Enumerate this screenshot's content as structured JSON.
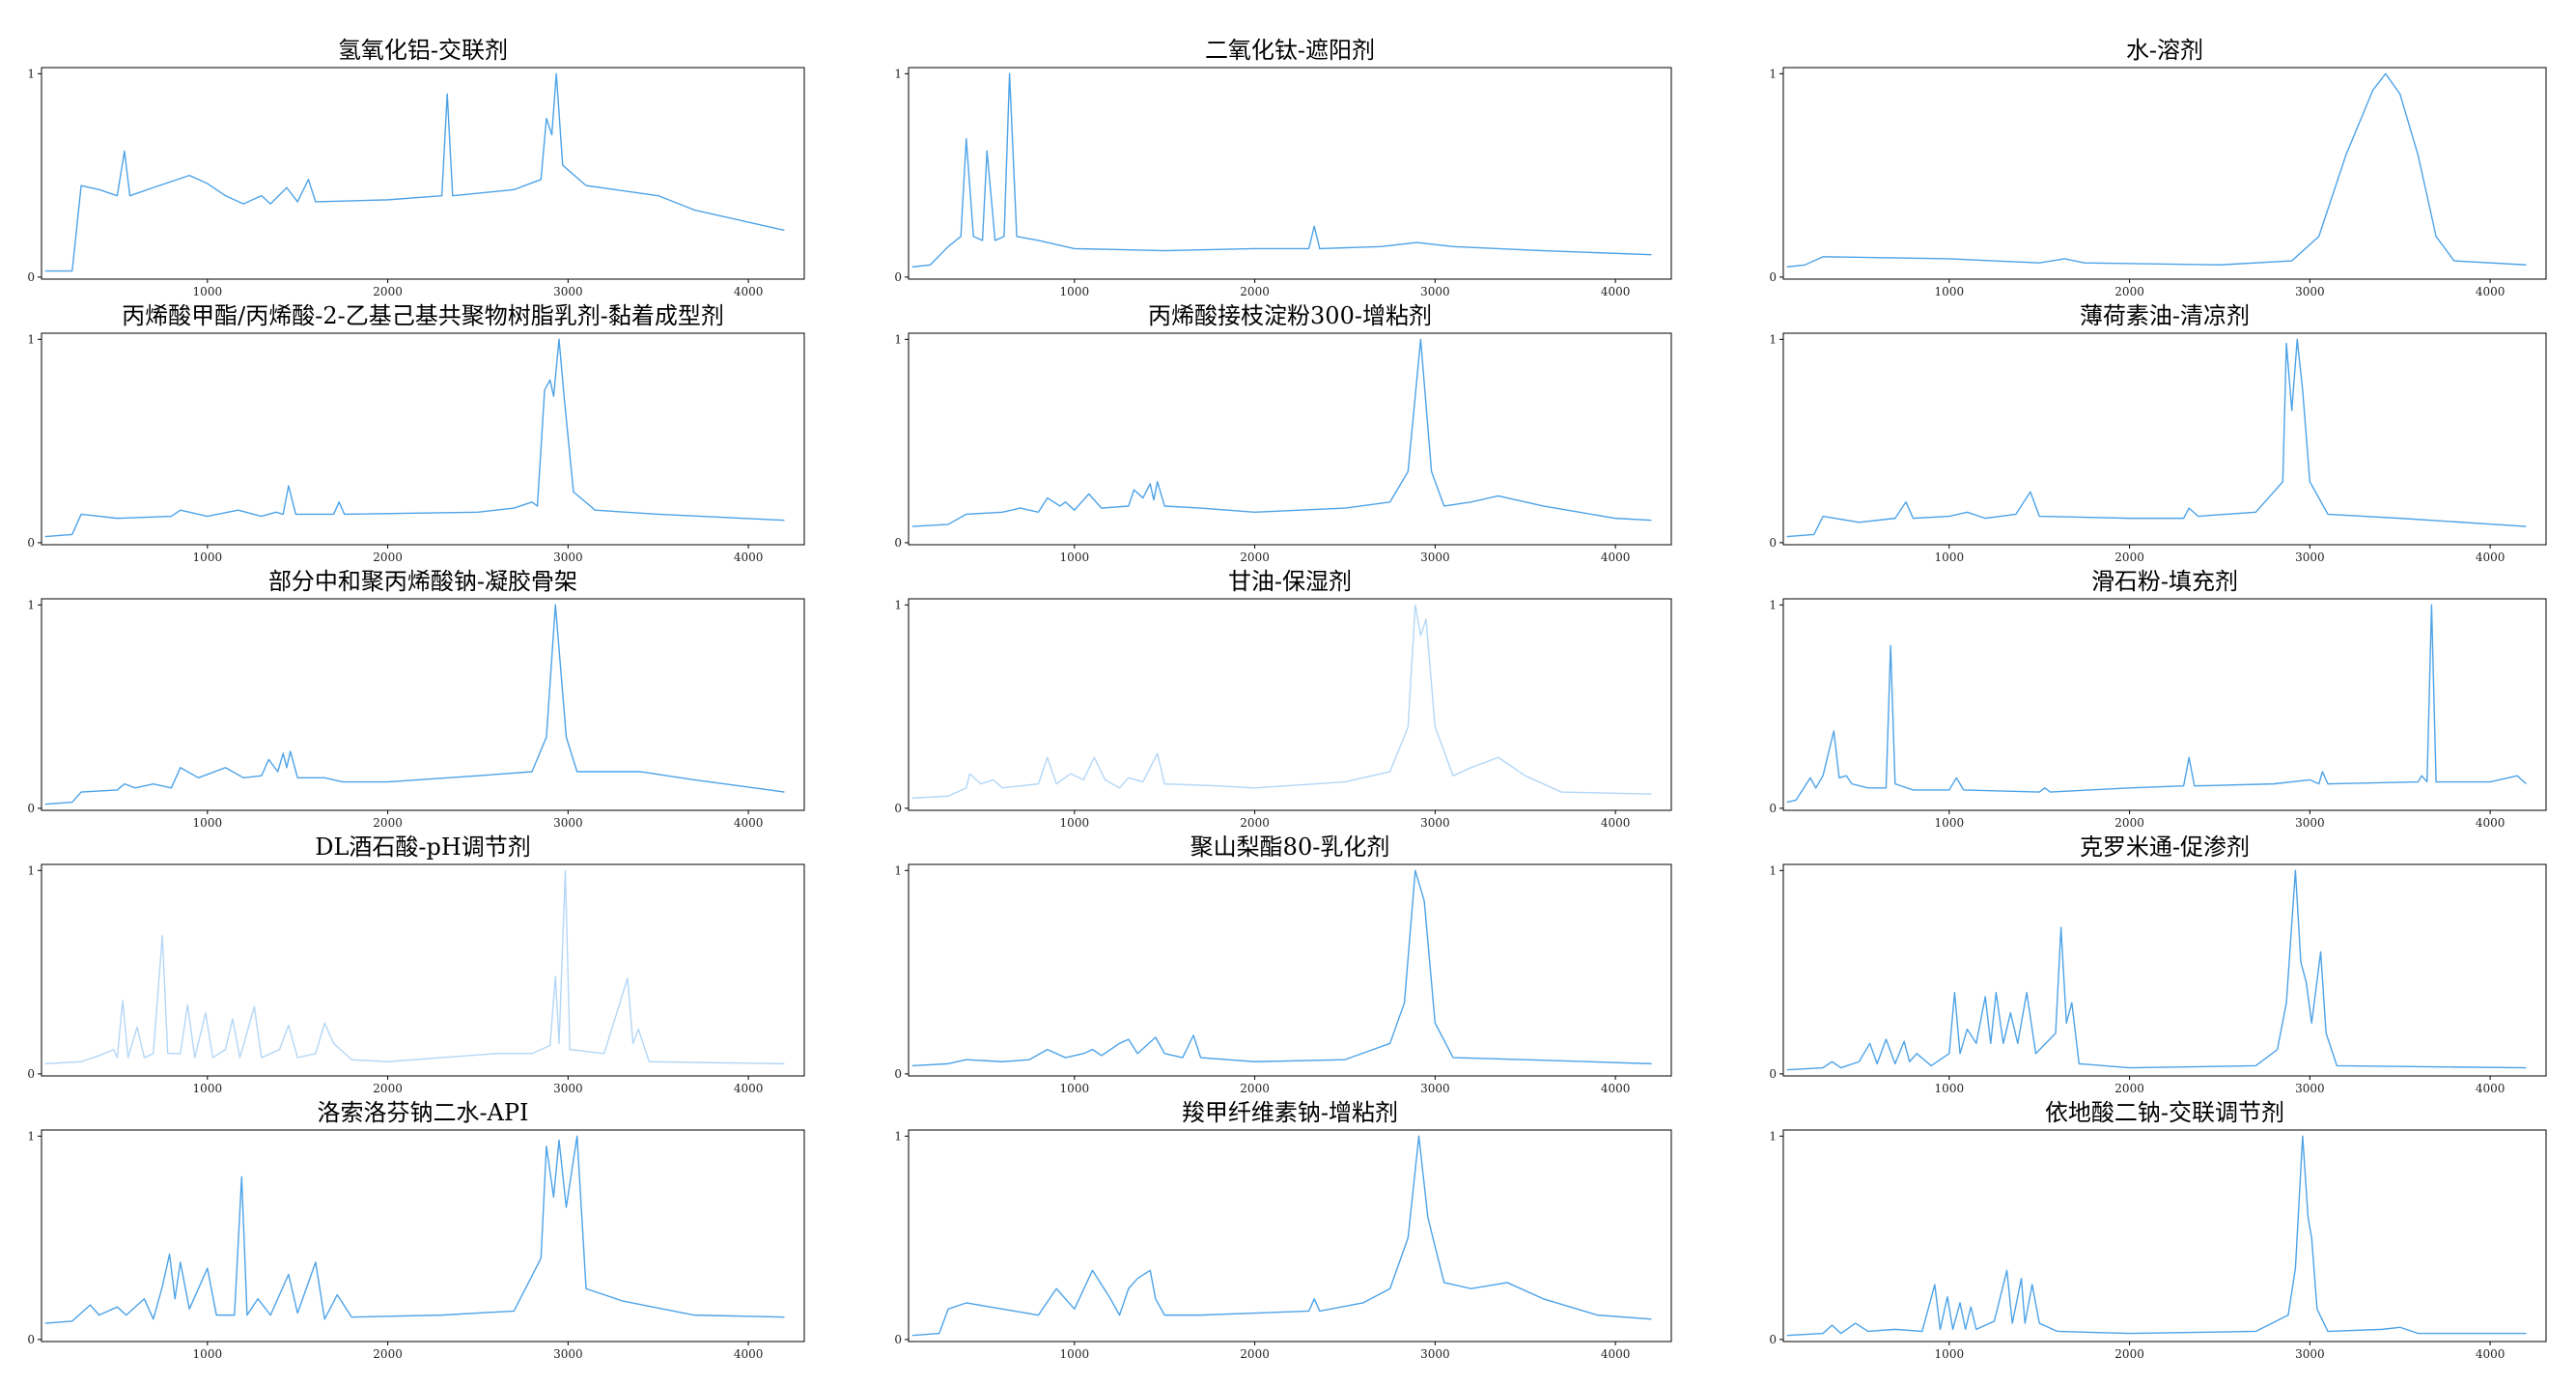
{
  "chart_data": [
    {
      "type": "line",
      "title": "氢氧化铝-交联剂",
      "color": "#4da3e8",
      "x": [
        100,
        250,
        300,
        400,
        500,
        540,
        570,
        700,
        900,
        1000,
        1100,
        1200,
        1300,
        1350,
        1440,
        1500,
        1560,
        1600,
        2000,
        2300,
        2330,
        2360,
        2700,
        2850,
        2880,
        2910,
        2935,
        2970,
        3100,
        3500,
        3700,
        4000,
        4200
      ],
      "values": [
        0.03,
        0.03,
        0.45,
        0.43,
        0.4,
        0.62,
        0.4,
        0.44,
        0.5,
        0.46,
        0.4,
        0.36,
        0.4,
        0.36,
        0.44,
        0.37,
        0.48,
        0.37,
        0.38,
        0.4,
        0.9,
        0.4,
        0.43,
        0.48,
        0.78,
        0.7,
        1.0,
        0.55,
        0.45,
        0.4,
        0.33,
        0.27,
        0.23
      ],
      "xlim": [
        80,
        4310
      ],
      "ylim": [
        -0.01,
        1.03
      ],
      "xticks": [
        1000,
        2000,
        3000,
        4000
      ],
      "yticks": [
        0,
        1
      ]
    },
    {
      "type": "line",
      "title": "二氧化钛-遮阳剂",
      "color": "#4da3e8",
      "x": [
        100,
        200,
        300,
        370,
        400,
        440,
        490,
        515,
        560,
        610,
        640,
        680,
        800,
        1000,
        1500,
        2000,
        2300,
        2330,
        2360,
        2700,
        2900,
        3100,
        3600,
        4200
      ],
      "values": [
        0.05,
        0.06,
        0.15,
        0.2,
        0.68,
        0.2,
        0.18,
        0.62,
        0.18,
        0.2,
        1.0,
        0.2,
        0.18,
        0.14,
        0.13,
        0.14,
        0.14,
        0.25,
        0.14,
        0.15,
        0.17,
        0.15,
        0.13,
        0.11
      ],
      "xlim": [
        80,
        4310
      ],
      "ylim": [
        -0.01,
        1.03
      ],
      "xticks": [
        1000,
        2000,
        3000,
        4000
      ],
      "yticks": [
        0,
        1
      ]
    },
    {
      "type": "line",
      "title": "水-溶剂",
      "color": "#4da3e8",
      "x": [
        100,
        200,
        300,
        1000,
        1500,
        1640,
        1750,
        2500,
        2900,
        3050,
        3200,
        3350,
        3420,
        3500,
        3600,
        3700,
        3800,
        4200
      ],
      "values": [
        0.05,
        0.06,
        0.1,
        0.09,
        0.07,
        0.09,
        0.07,
        0.06,
        0.08,
        0.2,
        0.6,
        0.92,
        1.0,
        0.9,
        0.6,
        0.2,
        0.08,
        0.06
      ],
      "xlim": [
        80,
        4310
      ],
      "ylim": [
        -0.01,
        1.03
      ],
      "xticks": [
        1000,
        2000,
        3000,
        4000
      ],
      "yticks": [
        0,
        1
      ]
    },
    {
      "type": "line",
      "title": "丙烯酸甲酯/丙烯酸-2-乙基己基共聚物树脂乳剂-黏着成型剂",
      "color": "#4da3e8",
      "x": [
        100,
        250,
        300,
        500,
        800,
        850,
        1000,
        1170,
        1300,
        1380,
        1420,
        1450,
        1490,
        1700,
        1730,
        1760,
        2500,
        2700,
        2800,
        2830,
        2870,
        2900,
        2920,
        2950,
        2980,
        3030,
        3150,
        3500,
        4200
      ],
      "values": [
        0.03,
        0.04,
        0.14,
        0.12,
        0.13,
        0.16,
        0.13,
        0.16,
        0.13,
        0.15,
        0.14,
        0.28,
        0.14,
        0.14,
        0.2,
        0.14,
        0.15,
        0.17,
        0.2,
        0.18,
        0.75,
        0.8,
        0.72,
        1.0,
        0.7,
        0.25,
        0.16,
        0.14,
        0.11
      ],
      "xlim": [
        80,
        4310
      ],
      "ylim": [
        -0.01,
        1.03
      ],
      "xticks": [
        1000,
        2000,
        3000,
        4000
      ],
      "yticks": [
        0,
        1
      ]
    },
    {
      "type": "line",
      "title": "丙烯酸接枝淀粉300-增粘剂",
      "color": "#4da3e8",
      "x": [
        100,
        300,
        400,
        600,
        700,
        800,
        850,
        920,
        950,
        1000,
        1080,
        1150,
        1300,
        1330,
        1380,
        1420,
        1440,
        1460,
        1500,
        1700,
        2000,
        2500,
        2750,
        2850,
        2920,
        2980,
        3050,
        3200,
        3350,
        3600,
        4000,
        4200
      ],
      "values": [
        0.08,
        0.09,
        0.14,
        0.15,
        0.17,
        0.15,
        0.22,
        0.18,
        0.2,
        0.16,
        0.24,
        0.17,
        0.18,
        0.26,
        0.22,
        0.29,
        0.21,
        0.3,
        0.18,
        0.17,
        0.15,
        0.17,
        0.2,
        0.35,
        1.0,
        0.35,
        0.18,
        0.2,
        0.23,
        0.18,
        0.12,
        0.11
      ],
      "xlim": [
        80,
        4310
      ],
      "ylim": [
        -0.01,
        1.03
      ],
      "xticks": [
        1000,
        2000,
        3000,
        4000
      ],
      "yticks": [
        0,
        1
      ]
    },
    {
      "type": "line",
      "title": "薄荷素油-清凉剂",
      "color": "#4da3e8",
      "x": [
        100,
        250,
        300,
        500,
        700,
        760,
        800,
        1000,
        1100,
        1200,
        1370,
        1450,
        1500,
        2000,
        2300,
        2330,
        2380,
        2700,
        2750,
        2850,
        2870,
        2900,
        2930,
        2960,
        3000,
        3100,
        3500,
        4200
      ],
      "values": [
        0.03,
        0.04,
        0.13,
        0.1,
        0.12,
        0.2,
        0.12,
        0.13,
        0.15,
        0.12,
        0.14,
        0.25,
        0.13,
        0.12,
        0.12,
        0.17,
        0.13,
        0.15,
        0.2,
        0.3,
        0.98,
        0.65,
        1.0,
        0.75,
        0.3,
        0.14,
        0.12,
        0.08
      ],
      "xlim": [
        80,
        4310
      ],
      "ylim": [
        -0.01,
        1.03
      ],
      "xticks": [
        1000,
        2000,
        3000,
        4000
      ],
      "yticks": [
        0,
        1
      ]
    },
    {
      "type": "line",
      "title": "部分中和聚丙烯酸钠-凝胶骨架",
      "color": "#4da3e8",
      "x": [
        100,
        250,
        300,
        500,
        540,
        600,
        700,
        800,
        850,
        950,
        1100,
        1200,
        1300,
        1340,
        1390,
        1420,
        1440,
        1460,
        1500,
        1650,
        1750,
        2000,
        2500,
        2800,
        2880,
        2930,
        2990,
        3050,
        3400,
        3700,
        4200
      ],
      "values": [
        0.02,
        0.03,
        0.08,
        0.09,
        0.12,
        0.1,
        0.12,
        0.1,
        0.2,
        0.15,
        0.2,
        0.15,
        0.16,
        0.24,
        0.18,
        0.27,
        0.2,
        0.28,
        0.15,
        0.15,
        0.13,
        0.13,
        0.16,
        0.18,
        0.35,
        1.0,
        0.35,
        0.18,
        0.18,
        0.14,
        0.08
      ],
      "xlim": [
        80,
        4310
      ],
      "ylim": [
        -0.01,
        1.03
      ],
      "xticks": [
        1000,
        2000,
        3000,
        4000
      ],
      "yticks": [
        0,
        1
      ]
    },
    {
      "type": "line",
      "title": "甘油-保湿剂",
      "color": "#b3d7f7",
      "x": [
        100,
        300,
        400,
        420,
        480,
        550,
        600,
        800,
        850,
        900,
        980,
        1050,
        1110,
        1170,
        1250,
        1300,
        1380,
        1460,
        1500,
        1800,
        2000,
        2500,
        2750,
        2850,
        2890,
        2920,
        2950,
        3000,
        3100,
        3200,
        3350,
        3500,
        3700,
        4200
      ],
      "values": [
        0.05,
        0.06,
        0.1,
        0.17,
        0.12,
        0.14,
        0.1,
        0.12,
        0.25,
        0.12,
        0.17,
        0.14,
        0.25,
        0.14,
        0.1,
        0.15,
        0.13,
        0.27,
        0.12,
        0.11,
        0.1,
        0.13,
        0.18,
        0.4,
        1.0,
        0.85,
        0.93,
        0.4,
        0.16,
        0.2,
        0.25,
        0.16,
        0.08,
        0.07
      ],
      "xlim": [
        80,
        4310
      ],
      "ylim": [
        -0.01,
        1.03
      ],
      "xticks": [
        1000,
        2000,
        3000,
        4000
      ],
      "yticks": [
        0,
        1
      ]
    },
    {
      "type": "line",
      "title": "滑石粉-填充剂",
      "color": "#4da3e8",
      "x": [
        100,
        150,
        230,
        260,
        300,
        360,
        390,
        430,
        460,
        550,
        650,
        675,
        700,
        800,
        1000,
        1040,
        1080,
        1500,
        1530,
        1560,
        2000,
        2300,
        2330,
        2360,
        2800,
        3000,
        3050,
        3070,
        3100,
        3600,
        3620,
        3650,
        3675,
        3700,
        4000,
        4150,
        4200
      ],
      "values": [
        0.03,
        0.04,
        0.15,
        0.1,
        0.16,
        0.38,
        0.15,
        0.16,
        0.12,
        0.1,
        0.1,
        0.8,
        0.12,
        0.09,
        0.09,
        0.15,
        0.09,
        0.08,
        0.1,
        0.08,
        0.1,
        0.11,
        0.25,
        0.11,
        0.12,
        0.14,
        0.12,
        0.18,
        0.12,
        0.13,
        0.16,
        0.13,
        1.0,
        0.13,
        0.13,
        0.16,
        0.12
      ],
      "xlim": [
        80,
        4310
      ],
      "ylim": [
        -0.01,
        1.03
      ],
      "xticks": [
        1000,
        2000,
        3000,
        4000
      ],
      "yticks": [
        0,
        1
      ]
    },
    {
      "type": "line",
      "title": "DL酒石酸-pH调节剂",
      "color": "#b3d7f7",
      "x": [
        100,
        300,
        400,
        480,
        500,
        530,
        560,
        610,
        650,
        700,
        750,
        780,
        850,
        890,
        930,
        990,
        1030,
        1100,
        1140,
        1180,
        1260,
        1300,
        1400,
        1450,
        1500,
        1600,
        1650,
        1700,
        1800,
        2000,
        2600,
        2800,
        2900,
        2930,
        2950,
        2985,
        3010,
        3200,
        3330,
        3360,
        3390,
        3450,
        4200
      ],
      "values": [
        0.05,
        0.06,
        0.09,
        0.12,
        0.08,
        0.36,
        0.08,
        0.23,
        0.08,
        0.1,
        0.68,
        0.1,
        0.1,
        0.34,
        0.08,
        0.3,
        0.08,
        0.12,
        0.27,
        0.08,
        0.33,
        0.08,
        0.12,
        0.24,
        0.08,
        0.1,
        0.25,
        0.15,
        0.07,
        0.06,
        0.1,
        0.1,
        0.14,
        0.48,
        0.15,
        1.0,
        0.12,
        0.1,
        0.47,
        0.15,
        0.22,
        0.06,
        0.05
      ],
      "xlim": [
        80,
        4310
      ],
      "ylim": [
        -0.01,
        1.03
      ],
      "xticks": [
        1000,
        2000,
        3000,
        4000
      ],
      "yticks": [
        0,
        1
      ]
    },
    {
      "type": "line",
      "title": "聚山梨酯80-乳化剂",
      "color": "#4da3e8",
      "x": [
        100,
        300,
        400,
        600,
        750,
        850,
        950,
        1050,
        1100,
        1150,
        1250,
        1300,
        1350,
        1450,
        1500,
        1600,
        1660,
        1700,
        2000,
        2500,
        2750,
        2830,
        2890,
        2940,
        3000,
        3100,
        3500,
        4200
      ],
      "values": [
        0.04,
        0.05,
        0.07,
        0.06,
        0.07,
        0.12,
        0.08,
        0.1,
        0.12,
        0.09,
        0.15,
        0.17,
        0.1,
        0.18,
        0.1,
        0.08,
        0.19,
        0.08,
        0.06,
        0.07,
        0.15,
        0.35,
        1.0,
        0.85,
        0.25,
        0.08,
        0.07,
        0.05
      ],
      "xlim": [
        80,
        4310
      ],
      "ylim": [
        -0.01,
        1.03
      ],
      "xticks": [
        1000,
        2000,
        3000,
        4000
      ],
      "yticks": [
        0,
        1
      ]
    },
    {
      "type": "line",
      "title": "克罗米通-促渗剂",
      "color": "#4da3e8",
      "x": [
        100,
        300,
        350,
        400,
        500,
        560,
        600,
        650,
        700,
        750,
        780,
        820,
        900,
        1000,
        1030,
        1060,
        1100,
        1150,
        1200,
        1230,
        1260,
        1300,
        1340,
        1380,
        1430,
        1480,
        1590,
        1620,
        1650,
        1680,
        1720,
        2000,
        2700,
        2820,
        2870,
        2920,
        2950,
        2980,
        3010,
        3060,
        3090,
        3150,
        4200
      ],
      "values": [
        0.02,
        0.03,
        0.06,
        0.03,
        0.06,
        0.15,
        0.05,
        0.17,
        0.05,
        0.16,
        0.06,
        0.1,
        0.04,
        0.1,
        0.4,
        0.1,
        0.22,
        0.15,
        0.38,
        0.15,
        0.4,
        0.15,
        0.3,
        0.15,
        0.4,
        0.1,
        0.2,
        0.72,
        0.25,
        0.35,
        0.05,
        0.03,
        0.04,
        0.12,
        0.35,
        1.0,
        0.55,
        0.45,
        0.25,
        0.6,
        0.2,
        0.04,
        0.03
      ],
      "xlim": [
        80,
        4310
      ],
      "ylim": [
        -0.01,
        1.03
      ],
      "xticks": [
        1000,
        2000,
        3000,
        4000
      ],
      "yticks": [
        0,
        1
      ]
    },
    {
      "type": "line",
      "title": "洛索洛芬钠二水-API",
      "color": "#4da3e8",
      "x": [
        100,
        250,
        300,
        350,
        400,
        500,
        550,
        650,
        700,
        750,
        790,
        820,
        850,
        900,
        1000,
        1050,
        1150,
        1190,
        1220,
        1280,
        1350,
        1450,
        1500,
        1600,
        1650,
        1720,
        1800,
        2300,
        2700,
        2850,
        2880,
        2920,
        2950,
        2990,
        3050,
        3100,
        3300,
        3700,
        4200
      ],
      "values": [
        0.08,
        0.09,
        0.13,
        0.17,
        0.12,
        0.16,
        0.12,
        0.2,
        0.1,
        0.26,
        0.42,
        0.2,
        0.38,
        0.15,
        0.35,
        0.12,
        0.12,
        0.8,
        0.12,
        0.2,
        0.12,
        0.32,
        0.13,
        0.38,
        0.1,
        0.22,
        0.11,
        0.12,
        0.14,
        0.4,
        0.95,
        0.7,
        0.98,
        0.65,
        1.0,
        0.25,
        0.19,
        0.12,
        0.11
      ],
      "xlim": [
        80,
        4310
      ],
      "ylim": [
        -0.01,
        1.03
      ],
      "xticks": [
        1000,
        2000,
        3000,
        4000
      ],
      "yticks": [
        0,
        1
      ]
    },
    {
      "type": "line",
      "title": "羧甲纤维素钠-增粘剂",
      "color": "#4da3e8",
      "x": [
        100,
        250,
        300,
        400,
        600,
        800,
        900,
        1000,
        1100,
        1200,
        1250,
        1300,
        1350,
        1420,
        1450,
        1500,
        1700,
        2000,
        2300,
        2330,
        2360,
        2600,
        2750,
        2850,
        2910,
        2960,
        3050,
        3200,
        3400,
        3600,
        3900,
        4200
      ],
      "values": [
        0.02,
        0.03,
        0.15,
        0.18,
        0.15,
        0.12,
        0.25,
        0.15,
        0.34,
        0.2,
        0.12,
        0.25,
        0.3,
        0.34,
        0.2,
        0.12,
        0.12,
        0.13,
        0.14,
        0.2,
        0.14,
        0.18,
        0.25,
        0.5,
        1.0,
        0.6,
        0.28,
        0.25,
        0.28,
        0.2,
        0.12,
        0.1
      ],
      "xlim": [
        80,
        4310
      ],
      "ylim": [
        -0.01,
        1.03
      ],
      "xticks": [
        1000,
        2000,
        3000,
        4000
      ],
      "yticks": [
        0,
        1
      ]
    },
    {
      "type": "line",
      "title": "依地酸二钠-交联调节剂",
      "color": "#4da3e8",
      "x": [
        100,
        300,
        350,
        400,
        480,
        550,
        700,
        850,
        920,
        950,
        990,
        1020,
        1060,
        1090,
        1120,
        1150,
        1250,
        1320,
        1350,
        1400,
        1420,
        1460,
        1500,
        1600,
        2000,
        2700,
        2880,
        2920,
        2960,
        2990,
        3010,
        3040,
        3100,
        3400,
        3500,
        3600,
        4200
      ],
      "values": [
        0.02,
        0.03,
        0.07,
        0.03,
        0.08,
        0.04,
        0.05,
        0.04,
        0.27,
        0.05,
        0.21,
        0.05,
        0.18,
        0.05,
        0.16,
        0.05,
        0.09,
        0.34,
        0.08,
        0.3,
        0.08,
        0.27,
        0.08,
        0.04,
        0.03,
        0.04,
        0.12,
        0.35,
        1.0,
        0.6,
        0.5,
        0.15,
        0.04,
        0.05,
        0.06,
        0.03,
        0.03
      ],
      "xlim": [
        80,
        4310
      ],
      "ylim": [
        -0.01,
        1.03
      ],
      "xticks": [
        1000,
        2000,
        3000,
        4000
      ],
      "yticks": [
        0,
        1
      ]
    }
  ]
}
